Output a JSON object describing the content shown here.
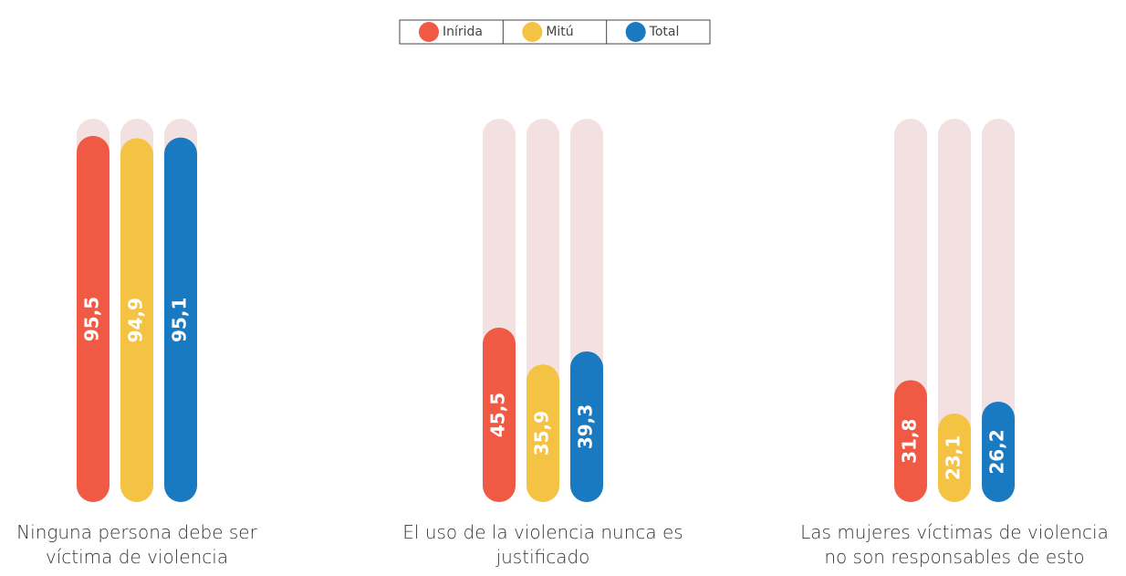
{
  "chart_data": {
    "type": "bar",
    "categories": [
      "Ninguna persona debe ser víctima de violencia",
      "El uso de la violencia nunca es justificado",
      "Las mujeres víctimas de violencia no son responsables de esto"
    ],
    "series": [
      {
        "name": "Inírida",
        "color": "#f05a45",
        "values": [
          95.5,
          45.5,
          31.8
        ],
        "value_labels": [
          "95,5",
          "45,5",
          "31,8"
        ]
      },
      {
        "name": "Mitú",
        "color": "#f4c343",
        "values": [
          94.9,
          35.9,
          23.1
        ],
        "value_labels": [
          "94,9",
          "35,9",
          "23,1"
        ]
      },
      {
        "name": "Total",
        "color": "#1a7ac1",
        "values": [
          95.1,
          39.3,
          26.2
        ],
        "value_labels": [
          "95,1",
          "39,3",
          "26,2"
        ]
      }
    ],
    "ylim": [
      0,
      100
    ],
    "legend": "top"
  }
}
